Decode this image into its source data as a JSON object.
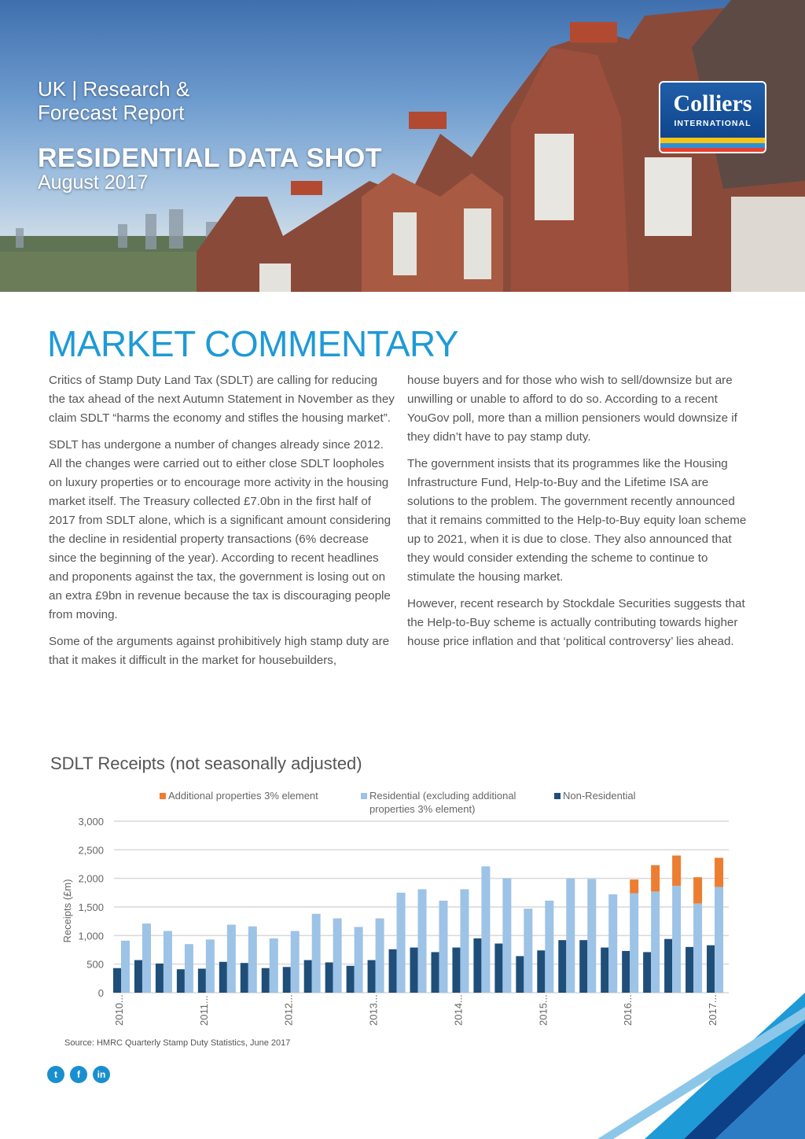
{
  "header": {
    "kicker": "UK | Research & Forecast Report",
    "title": "RESIDENTIAL DATA SHOT",
    "date": "August 2017",
    "logo": {
      "wordmark": "Colliers",
      "sub": "INTERNATIONAL"
    }
  },
  "commentary": {
    "heading": "MARKET COMMENTARY",
    "left_paragraphs": [
      "Critics of Stamp Duty Land Tax (SDLT) are calling for reducing the tax ahead of the next Autumn Statement in November as they claim SDLT “harms the economy and stifles the housing market”.",
      "SDLT has undergone a number of changes already since 2012. All the changes were carried out to either close SDLT loopholes on luxury properties or to encourage more activity in the housing market itself. The Treasury collected £7.0bn in the first half of 2017 from SDLT alone, which is a significant amount considering the decline in residential property transactions (6% decrease since the beginning of the year). According to recent headlines and proponents against the tax, the government is losing out on an extra £9bn in revenue because the tax is discouraging people from moving.",
      "Some of the arguments against prohibitively high stamp duty are that it makes it difficult in the market for housebuilders,"
    ],
    "right_paragraphs": [
      "house buyers and for those who wish to sell/downsize but are unwilling or unable to afford to do so. According to a recent YouGov poll, more than a million pensioners would downsize if they didn’t have to pay stamp duty.",
      "The government insists that its programmes like the Housing Infrastructure Fund, Help-to-Buy and the Lifetime ISA are solutions to the problem. The government recently announced that it remains committed to the Help-to-Buy equity loan scheme up to 2021, when it is due to close. They also announced that they would consider extending the scheme to continue to stimulate the housing market.",
      "However, recent research by Stockdale Securities suggests that the Help-to-Buy scheme is actually contributing towards higher house price inflation and that ‘political controversy’ lies ahead."
    ]
  },
  "chart_data": {
    "type": "bar",
    "title": "SDLT Receipts (not seasonally adjusted)",
    "ylabel": "Receipts (£m)",
    "xlabel": "",
    "ylim": [
      0,
      3000
    ],
    "yticks": [
      "0",
      "500",
      "1,000",
      "1,500",
      "2,000",
      "2,500",
      "3,000"
    ],
    "ytick_values": [
      0,
      500,
      1000,
      1500,
      2000,
      2500,
      3000
    ],
    "grid": true,
    "legend_position": "top",
    "x_tick_labels": [
      "2010...",
      "2011...",
      "2012...",
      "2013...",
      "2014...",
      "2015...",
      "2016...",
      "2017..."
    ],
    "categories": [
      "2010 Q1",
      "2010 Q2",
      "2010 Q3",
      "2010 Q4",
      "2011 Q1",
      "2011 Q2",
      "2011 Q3",
      "2011 Q4",
      "2012 Q1",
      "2012 Q2",
      "2012 Q3",
      "2012 Q4",
      "2013 Q1",
      "2013 Q2",
      "2013 Q3",
      "2013 Q4",
      "2014 Q1",
      "2014 Q2",
      "2014 Q3",
      "2014 Q4",
      "2015 Q1",
      "2015 Q2",
      "2015 Q3",
      "2015 Q4",
      "2016 Q1",
      "2016 Q2",
      "2016 Q3",
      "2016 Q4",
      "2017 Q1"
    ],
    "series": [
      {
        "name": "Non-Residential",
        "color": "#1f4e79",
        "values": [
          430,
          570,
          510,
          410,
          420,
          540,
          520,
          430,
          450,
          570,
          530,
          470,
          570,
          760,
          790,
          710,
          790,
          950,
          860,
          640,
          740,
          920,
          920,
          790,
          730,
          710,
          940,
          800,
          830
        ]
      },
      {
        "name": "Residential (excluding additional properties 3% element)",
        "color": "#9dc3e6",
        "values": [
          910,
          1210,
          1080,
          850,
          930,
          1190,
          1160,
          950,
          1080,
          1380,
          1300,
          1150,
          1300,
          1750,
          1810,
          1610,
          1810,
          2210,
          2000,
          1470,
          1610,
          2000,
          1990,
          1720,
          1740,
          1770,
          1870,
          1560,
          1850
        ]
      },
      {
        "name": "Additional properties 3% element",
        "color": "#ed7d31",
        "stacked_on": "Residential (excluding additional properties 3% element)",
        "values": [
          0,
          0,
          0,
          0,
          0,
          0,
          0,
          0,
          0,
          0,
          0,
          0,
          0,
          0,
          0,
          0,
          0,
          0,
          0,
          0,
          0,
          0,
          0,
          0,
          240,
          460,
          530,
          460,
          510
        ]
      }
    ],
    "legend_order": [
      "Additional properties 3% element",
      "Residential (excluding additional properties 3% element)",
      "Non-Residential"
    ],
    "source": "Source: HMRC Quarterly Stamp Duty Statistics, June 2017"
  },
  "social": [
    {
      "icon": "twitter-icon",
      "glyph": "t"
    },
    {
      "icon": "facebook-icon",
      "glyph": "f"
    },
    {
      "icon": "linkedin-icon",
      "glyph": "in"
    }
  ]
}
